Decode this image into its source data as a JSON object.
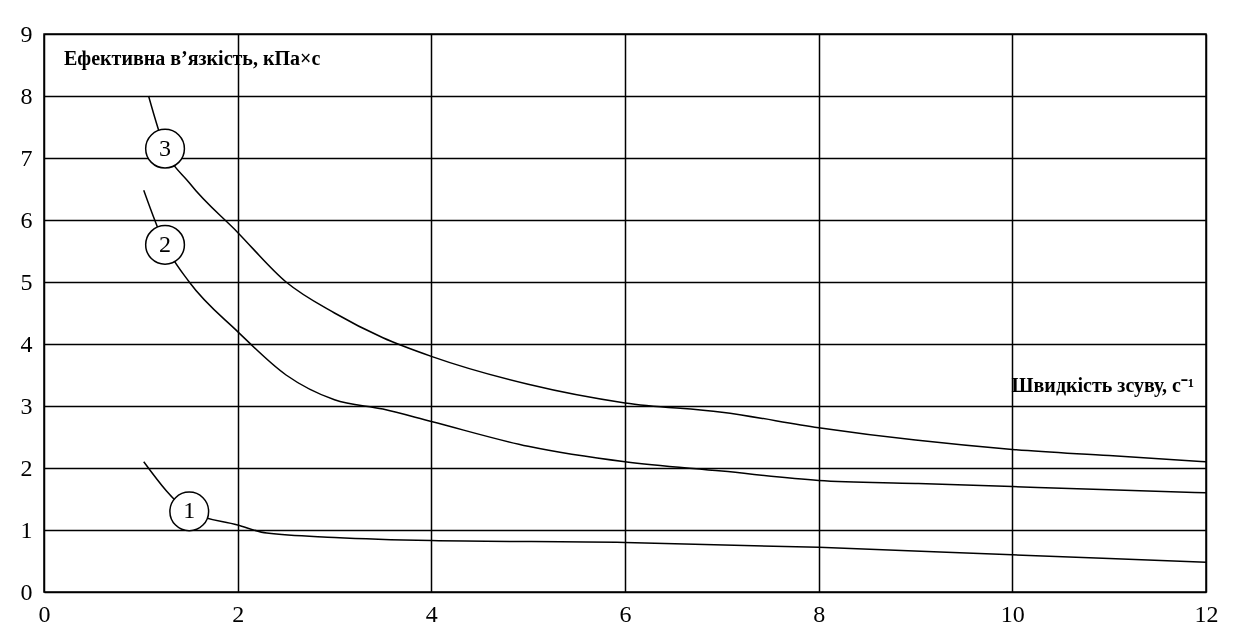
{
  "chart_data": {
    "type": "line",
    "xlabel": "Швидкість зсуву, с⁻¹",
    "ylabel": "Ефективна в’язкість, кПа×с",
    "series": [
      {
        "name": "1",
        "color": "#000000",
        "x": [
          1.03,
          1.5,
          2,
          2.3,
          3,
          4,
          6,
          8,
          10,
          12
        ],
        "values": [
          2.1,
          1.3,
          1.08,
          0.95,
          0.88,
          0.83,
          0.8,
          0.72,
          0.6,
          0.48
        ]
      },
      {
        "name": "2",
        "color": "#000000",
        "x": [
          1.03,
          1.25,
          1.5,
          2,
          2.5,
          3,
          3.5,
          4,
          5,
          6,
          7,
          8,
          9,
          10,
          11,
          12
        ],
        "values": [
          6.48,
          5.6,
          5.0,
          4.2,
          3.5,
          3.1,
          2.95,
          2.75,
          2.35,
          2.1,
          1.95,
          1.8,
          1.75,
          1.7,
          1.65,
          1.6
        ]
      },
      {
        "name": "3",
        "color": "#000000",
        "x": [
          1.08,
          1.25,
          1.5,
          2,
          2.5,
          3,
          3.5,
          4,
          5,
          6,
          7,
          8,
          9,
          10,
          11,
          12
        ],
        "values": [
          8.0,
          7.15,
          6.6,
          5.8,
          5.0,
          4.5,
          4.1,
          3.8,
          3.35,
          3.05,
          2.9,
          2.65,
          2.45,
          2.3,
          2.2,
          2.1
        ]
      }
    ],
    "xlim": [
      0,
      12
    ],
    "ylim": [
      0,
      9
    ],
    "xticks": [
      0,
      2,
      4,
      6,
      8,
      10,
      12
    ],
    "yticks": [
      0,
      1,
      2,
      3,
      4,
      5,
      6,
      7,
      8,
      9
    ],
    "grid": true,
    "marker": "none",
    "line_style": "solid"
  }
}
